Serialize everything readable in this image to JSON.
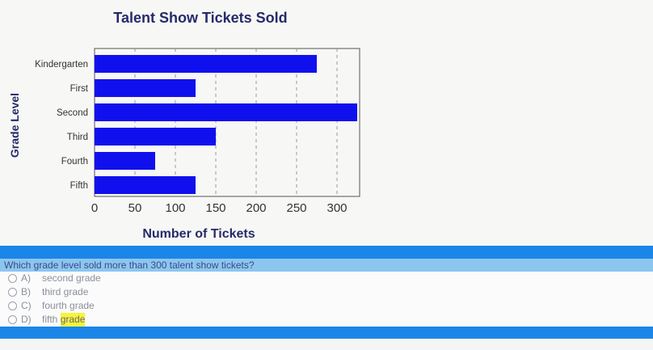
{
  "chart_data": {
    "type": "bar",
    "orientation": "horizontal",
    "title": "Talent Show Tickets Sold",
    "xlabel": "Number of Tickets",
    "ylabel": "Grade Level",
    "categories": [
      "Kindergarten",
      "First",
      "Second",
      "Third",
      "Fourth",
      "Fifth"
    ],
    "values": [
      275,
      125,
      325,
      150,
      75,
      125
    ],
    "xticks": [
      "0",
      "50",
      "100",
      "150",
      "200",
      "250",
      "300"
    ],
    "xlim": [
      0,
      325
    ],
    "grid": "vertical dashed",
    "bar_color": "#1010ee"
  },
  "question": {
    "text": "Which grade level sold more than 300 talent show tickets?",
    "options": [
      {
        "letter": "A)",
        "text": "second grade"
      },
      {
        "letter": "B)",
        "text": "third grade"
      },
      {
        "letter": "C)",
        "text": "fourth grade"
      },
      {
        "letter": "D)",
        "text_plain": "fifth",
        "text_highlight": "grade"
      }
    ]
  },
  "colors": {
    "band_blue": "#1a86e8",
    "question_bg": "#8cc6ef",
    "highlight": "#f7f33c"
  }
}
